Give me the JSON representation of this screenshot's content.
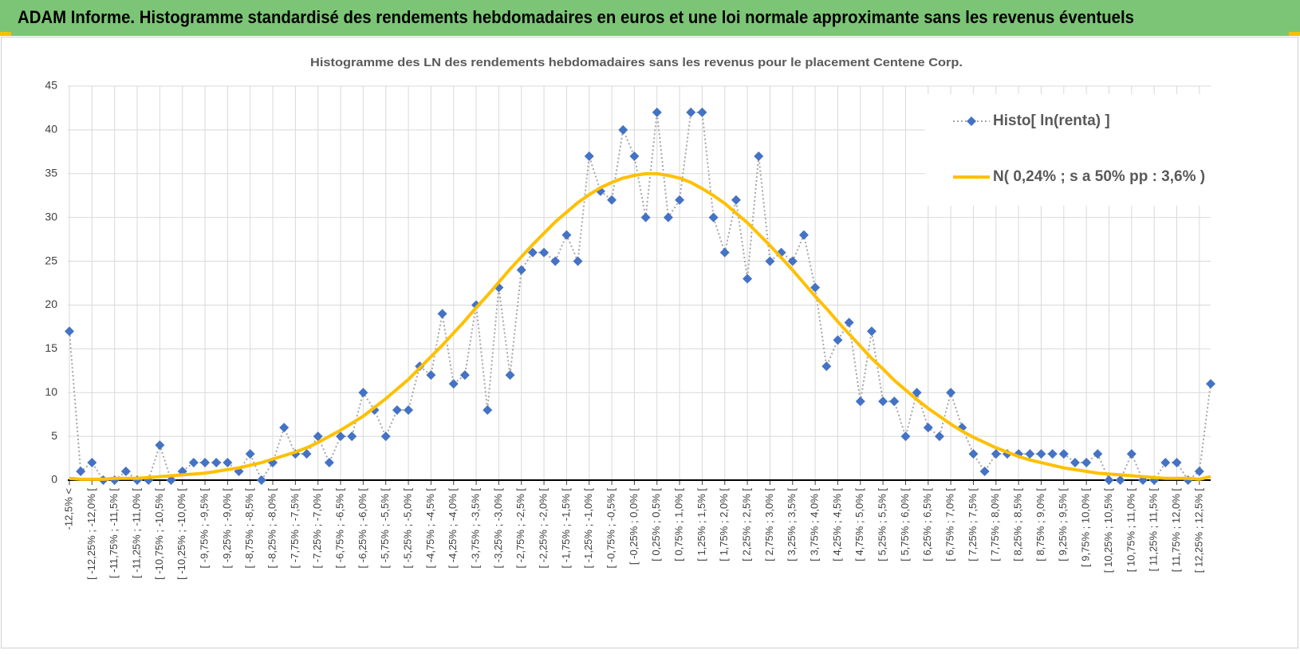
{
  "header": {
    "title": "ADAM Informe. Histogramme standardisé des rendements hebdomadaires en euros et une loi normale approximante sans les revenus éventuels"
  },
  "chart_data": {
    "type": "line",
    "title": "Histogramme  des LN des rendements  hebdomadaires sans les revenus pour le placement Centene Corp.",
    "categories": [
      "-12,5% <",
      null,
      "[ -12,25% ; -12,0% [",
      null,
      "[ -11,75% ; -11,5% [",
      null,
      "[ -11,25% ; -11,0% [",
      null,
      "[ -10,75% ; -10,5% [",
      null,
      "[ -10,25% ; -10,0% [",
      null,
      "[ -9,75% ; -9,5% [",
      null,
      "[ -9,25% ; -9,0% [",
      null,
      "[ -8,75% ; -8,5% [",
      null,
      "[ -8,25% ; -8,0% [",
      null,
      "[ -7,75% ; -7,5% [",
      null,
      "[ -7,25% ; -7,0% [",
      null,
      "[ -6,75% ; -6,5% [",
      null,
      "[ -6,25% ; -6,0% [",
      null,
      "[ -5,75% ; -5,5% [",
      null,
      "[ -5,25% ; -5,0% [",
      null,
      "[ -4,75% ; -4,5% [",
      null,
      "[ -4,25% ; -4,0% [",
      null,
      "[ -3,75% ; -3,5% [",
      null,
      "[ -3,25% ; -3,0% [",
      null,
      "[ -2,75% ; -2,5% [",
      null,
      "[ -2,25% ; -2,0% [",
      null,
      "[ -1,75% ; -1,5% [",
      null,
      "[ -1,25% ; -1,0% [",
      null,
      "[ -0,75% ; -0,5% [",
      null,
      "[ -0,25% ; 0,0% [",
      null,
      "[ 0,25% ; 0,5% [",
      null,
      "[ 0,75% ; 1,0% [",
      null,
      "[ 1,25% ; 1,5% [",
      null,
      "[ 1,75% ; 2,0% [",
      null,
      "[ 2,25% ; 2,5% [",
      null,
      "[ 2,75% ; 3,0% [",
      null,
      "[ 3,25% ; 3,5% [",
      null,
      "[ 3,75% ; 4,0% [",
      null,
      "[ 4,25% ; 4,5% [",
      null,
      "[ 4,75% ; 5,0% [",
      null,
      "[ 5,25% ; 5,5% [",
      null,
      "[ 5,75% ; 6,0% [",
      null,
      "[ 6,25% ; 6,5% [",
      null,
      "[ 6,75% ; 7,0% [",
      null,
      "[ 7,25% ; 7,5% [",
      null,
      "[ 7,75% ; 8,0% [",
      null,
      "[ 8,25% ; 8,5% [",
      null,
      "[ 8,75% ; 9,0% [",
      null,
      "[ 9,25% ; 9,5% [",
      null,
      "[ 9,75% ; 10,0% [",
      null,
      "[ 10,25% ; 10,5% [",
      null,
      "[ 10,75% ; 11,0% [",
      null,
      "[ 11,25% ; 11,5% [",
      null,
      "[ 11,75% ; 12,0% [",
      null,
      "[ 12,25% ; 12,5% [",
      null
    ],
    "series": [
      {
        "name": "Histo[ ln(renta) ]",
        "color": "#4472c4",
        "line_color": "#a6a6a6",
        "marker": "diamond",
        "dash": "dotted",
        "values": [
          17,
          1,
          2,
          0,
          0,
          1,
          0,
          0,
          4,
          0,
          1,
          2,
          2,
          2,
          2,
          1,
          3,
          0,
          2,
          6,
          3,
          3,
          5,
          2,
          5,
          5,
          10,
          8,
          5,
          8,
          8,
          13,
          12,
          19,
          11,
          12,
          20,
          8,
          22,
          12,
          24,
          26,
          26,
          25,
          28,
          25,
          37,
          33,
          32,
          40,
          37,
          30,
          42,
          30,
          32,
          42,
          42,
          30,
          26,
          32,
          23,
          37,
          25,
          26,
          25,
          28,
          22,
          13,
          16,
          18,
          9,
          17,
          9,
          9,
          5,
          10,
          6,
          5,
          10,
          6,
          3,
          1,
          3,
          3,
          3,
          3,
          3,
          3,
          3,
          2,
          2,
          3,
          0,
          0,
          3,
          0,
          0,
          2,
          2,
          0,
          1,
          11
        ]
      },
      {
        "name": "N( 0,24% ; s a 50% pp : 3,6% )",
        "color": "#ffc000",
        "marker": "none",
        "values": [
          0.2,
          0.1,
          0.1,
          0.1,
          0.2,
          0.2,
          0.2,
          0.3,
          0.4,
          0.5,
          0.6,
          0.7,
          0.8,
          1.0,
          1.2,
          1.4,
          1.7,
          2.0,
          2.4,
          2.8,
          3.2,
          3.7,
          4.3,
          5.0,
          5.7,
          6.5,
          7.3,
          8.3,
          9.3,
          10.4,
          11.5,
          12.8,
          14.1,
          15.4,
          16.8,
          18.2,
          19.7,
          21.1,
          22.6,
          24.1,
          25.5,
          26.9,
          28.2,
          29.5,
          30.6,
          31.7,
          32.6,
          33.4,
          34.0,
          34.5,
          34.8,
          35.0,
          35.0,
          34.8,
          34.5,
          34.0,
          33.3,
          32.5,
          31.6,
          30.5,
          29.4,
          28.1,
          26.8,
          25.4,
          24.0,
          22.5,
          21.0,
          19.6,
          18.1,
          16.7,
          15.3,
          13.9,
          12.7,
          11.4,
          10.3,
          9.2,
          8.2,
          7.3,
          6.4,
          5.6,
          4.9,
          4.3,
          3.7,
          3.2,
          2.7,
          2.3,
          2.0,
          1.7,
          1.4,
          1.2,
          1.0,
          0.8,
          0.7,
          0.6,
          0.5,
          0.4,
          0.3,
          0.2,
          0.2,
          0.2,
          0.1,
          0.4
        ]
      }
    ],
    "ylim": [
      0,
      45
    ],
    "yticks": [
      0,
      5,
      10,
      15,
      20,
      25,
      30,
      35,
      40,
      45
    ],
    "grid": true,
    "legend": "upper right"
  }
}
